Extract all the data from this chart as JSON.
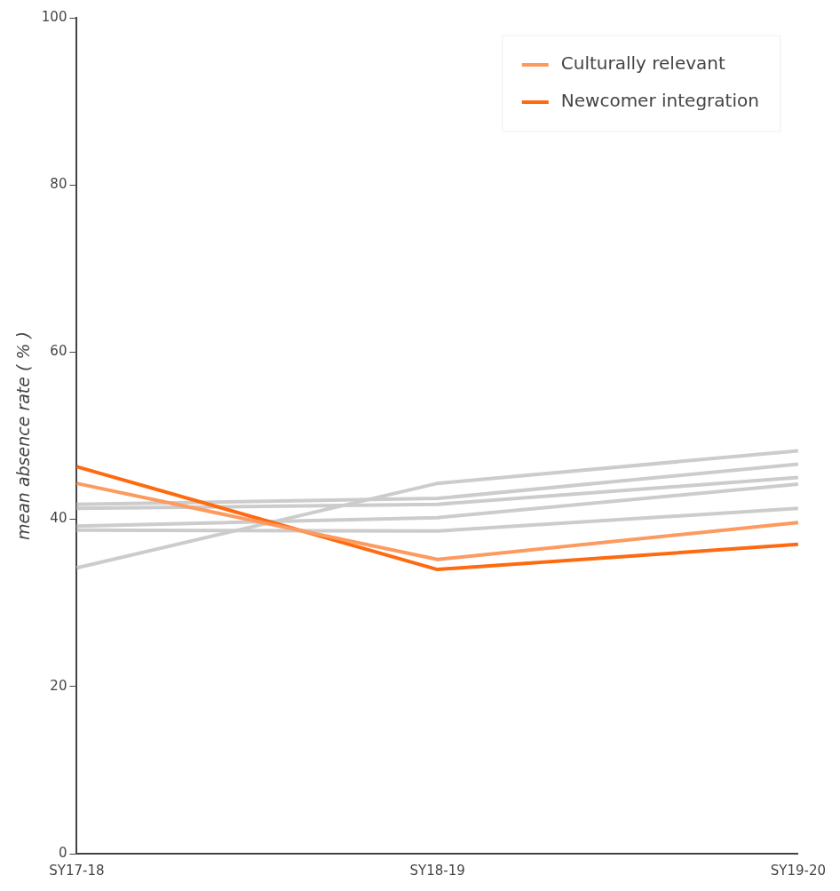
{
  "chart_data": {
    "type": "line",
    "ylabel": "mean absence rate ( % )",
    "categories": [
      "SY17-18",
      "SY18-19",
      "SY19-20"
    ],
    "ylim": [
      0,
      100
    ],
    "yticks": [
      0,
      20,
      40,
      60,
      80,
      100
    ],
    "grid": false,
    "legend": "top right",
    "marker": "none",
    "line_style": "solid",
    "series": [
      {
        "color": "#cccccc",
        "values": [
          34.2,
          44.3,
          48.2
        ]
      },
      {
        "color": "#cccccc",
        "values": [
          41.8,
          42.5,
          46.6
        ]
      },
      {
        "color": "#cccccc",
        "values": [
          41.3,
          41.8,
          45.0
        ]
      },
      {
        "color": "#cccccc",
        "values": [
          39.2,
          40.2,
          44.2
        ]
      },
      {
        "color": "#cccccc",
        "values": [
          38.7,
          38.6,
          41.3
        ]
      },
      {
        "name": "Culturally relevant",
        "color": "#fd9a5f",
        "values": [
          44.3,
          35.2,
          39.6
        ]
      },
      {
        "name": "Newcomer integration",
        "color": "#fe6a10",
        "values": [
          46.3,
          34.0,
          37.0
        ]
      }
    ]
  }
}
